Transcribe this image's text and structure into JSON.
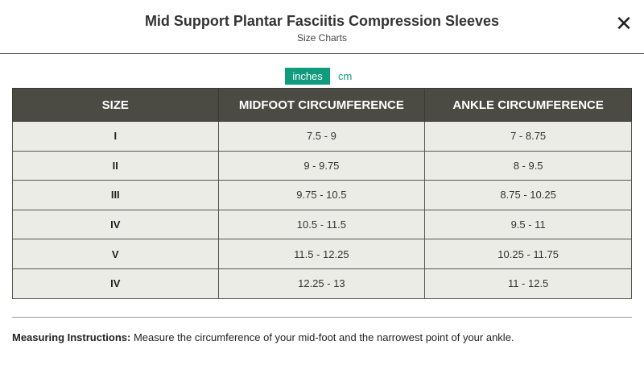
{
  "header": {
    "title": "Mid Support Plantar Fasciitis Compression Sleeves",
    "subtitle": "Size Charts",
    "close_label": "✕"
  },
  "units": {
    "inches": "inches",
    "cm": "cm",
    "selected": "inches"
  },
  "table": {
    "headers": [
      "SIZE",
      "MIDFOOT CIRCUMFERENCE",
      "ANKLE CIRCUMFERENCE"
    ],
    "rows": [
      [
        "I",
        "7.5 - 9",
        "7 - 8.75"
      ],
      [
        "II",
        "9 - 9.75",
        "8 - 9.5"
      ],
      [
        "III",
        "9.75 - 10.5",
        "8.75 - 10.25"
      ],
      [
        "IV",
        "10.5 - 11.5",
        "9.5 - 11"
      ],
      [
        "V",
        "11.5 - 12.25",
        "10.25 - 11.75"
      ],
      [
        "IV",
        "12.25 - 13",
        "11 - 12.5"
      ]
    ]
  },
  "instructions": {
    "label": "Measuring Instructions:",
    "text": " Measure the circumference of your mid-foot and the narrowest point of your ankle."
  },
  "colors": {
    "accent": "#0f9b7c",
    "header_bg": "#4b4b43",
    "cell_bg": "#ecece7"
  }
}
